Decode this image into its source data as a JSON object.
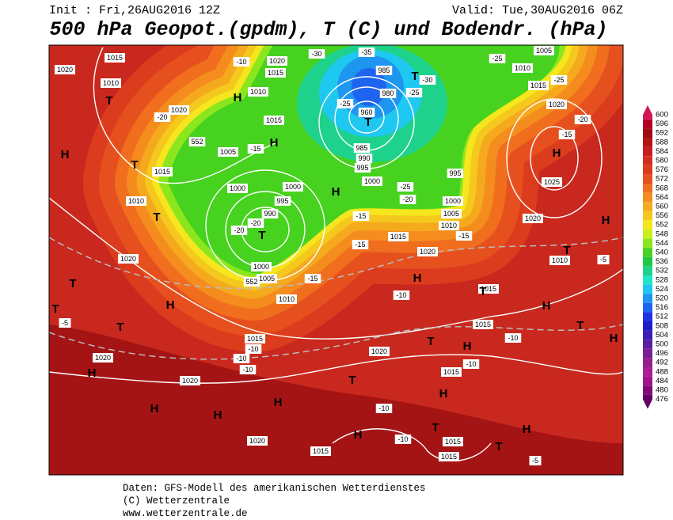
{
  "header": {
    "init": "Init : Fri,26AUG2016 12Z",
    "valid": "Valid: Tue,30AUG2016 06Z",
    "title": "500 hPa Geopot.(gpdm), T (C) und Bodendr. (hPa)"
  },
  "footer": {
    "line1": "Daten: GFS-Modell des amerikanischen Wetterdienstes",
    "line2": "(C) Wetterzentrale",
    "line3": "www.wetterzentrale.de"
  },
  "colorbar": {
    "values": [
      600,
      596,
      592,
      588,
      584,
      580,
      576,
      572,
      568,
      564,
      560,
      556,
      552,
      548,
      544,
      540,
      536,
      532,
      528,
      524,
      520,
      516,
      512,
      508,
      504,
      500,
      496,
      492,
      488,
      484,
      480,
      476
    ],
    "colors": [
      "#d2145a",
      "#b40023",
      "#a00a14",
      "#b41414",
      "#c81e1e",
      "#d22d1e",
      "#dc3c1e",
      "#e6501e",
      "#f06e1e",
      "#f58c1e",
      "#f5aa1e",
      "#f5c81e",
      "#f5e61e",
      "#c8f01e",
      "#8ce61e",
      "#46d21e",
      "#1ec846",
      "#1ed28c",
      "#1ee6c8",
      "#1ec8f0",
      "#1e96f0",
      "#1e64f0",
      "#1e32e6",
      "#1e1ec8",
      "#3c1eb4",
      "#5a1ea0",
      "#781e96",
      "#961e8c",
      "#aa1e96",
      "#a0148c",
      "#820a78",
      "#640064"
    ]
  },
  "map_labels": [
    "1015",
    "1020",
    "1010",
    "T",
    "1020",
    "-20",
    "-10",
    "1020",
    "1015",
    "H",
    "1010",
    "-30",
    "-35",
    "985",
    "T",
    "-30",
    "-25",
    "980",
    "-25",
    "960",
    "T",
    "985",
    "990",
    "995",
    "1000",
    "-25",
    "1005",
    "1010",
    "1015",
    "-25",
    "1020",
    "-20",
    "-15",
    "H",
    "1025",
    "1015",
    "H",
    "552",
    "1005",
    "-15",
    "1015",
    "T",
    "H",
    "1010",
    "T",
    "1000",
    "1000",
    "995",
    "990",
    "-20",
    "-20",
    "T",
    "H",
    "-25",
    "-20",
    "995",
    "1000",
    "1005",
    "1010",
    "-15",
    "-15",
    "1015",
    "1020",
    "H",
    "T",
    "1010",
    "-5",
    "1020",
    "-15",
    "1020",
    "H",
    "1000",
    "1005",
    "552",
    "1010",
    "-15",
    "T",
    "H",
    "T",
    "-10",
    "1015",
    "H",
    "T",
    "H",
    "1015",
    "-10",
    "T",
    "H",
    "1015",
    "-10",
    "-10",
    "-10",
    "1020",
    "H",
    "1020",
    "-10",
    "1015",
    "T",
    "1020",
    "H",
    "H",
    "H",
    "H",
    "-10",
    "T",
    "H",
    "1020",
    "H",
    "-10",
    "1015",
    "T",
    "1015",
    "1015",
    "-5",
    "T",
    "-5",
    "T"
  ]
}
